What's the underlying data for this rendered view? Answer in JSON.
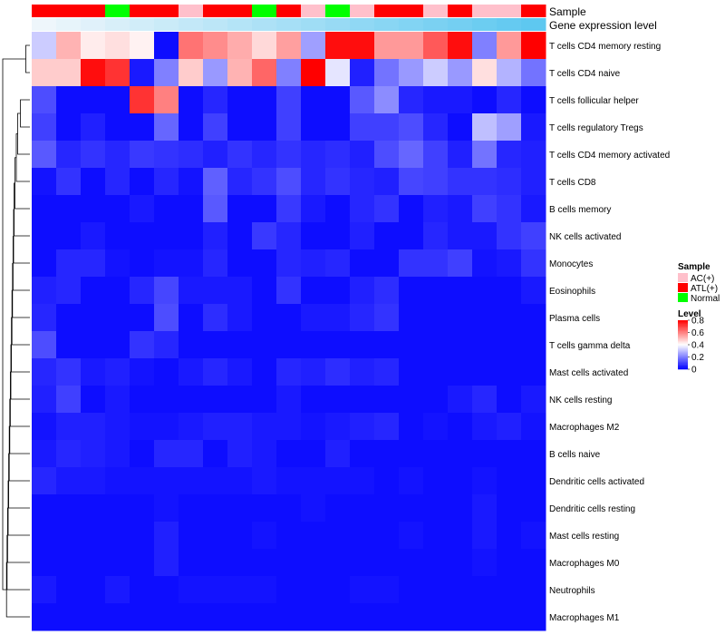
{
  "chart_data": {
    "type": "heatmap",
    "annotation_tracks": [
      {
        "key": "sample",
        "label": "Sample"
      },
      {
        "key": "level",
        "label": "Gene expression level"
      }
    ],
    "columns": [
      {
        "sample": "ATL(+)",
        "level": 0.05
      },
      {
        "sample": "ATL(+)",
        "level": 0.1
      },
      {
        "sample": "ATL(+)",
        "level": 0.15
      },
      {
        "sample": "Normal",
        "level": 0.2
      },
      {
        "sample": "ATL(+)",
        "level": 0.25
      },
      {
        "sample": "ATL(+)",
        "level": 0.3
      },
      {
        "sample": "AC(+)",
        "level": 0.35
      },
      {
        "sample": "ATL(+)",
        "level": 0.4
      },
      {
        "sample": "ATL(+)",
        "level": 0.45
      },
      {
        "sample": "Normal",
        "level": 0.5
      },
      {
        "sample": "ATL(+)",
        "level": 0.55
      },
      {
        "sample": "AC(+)",
        "level": 0.6
      },
      {
        "sample": "Normal",
        "level": 0.65
      },
      {
        "sample": "AC(+)",
        "level": 0.7
      },
      {
        "sample": "ATL(+)",
        "level": 0.75
      },
      {
        "sample": "ATL(+)",
        "level": 0.8
      },
      {
        "sample": "AC(+)",
        "level": 0.85
      },
      {
        "sample": "ATL(+)",
        "level": 0.9
      },
      {
        "sample": "AC(+)",
        "level": 0.95
      },
      {
        "sample": "AC(+)",
        "level": 1.0
      },
      {
        "sample": "ATL(+)",
        "level": 1.05
      }
    ],
    "rows": [
      "T cells CD4 memory resting",
      "T cells CD4 naive",
      "T cells follicular helper",
      "T cells regulatory  Tregs",
      "T cells CD4 memory activated",
      "T cells CD8",
      "B cells memory",
      "NK cells activated",
      "Monocytes",
      "Eosinophils",
      "Plasma cells",
      "T cells gamma delta",
      "Mast cells activated",
      "NK cells resting",
      "Macrophages M2",
      "B cells naive",
      "Dendritic cells activated",
      "Dendritic cells resting",
      "Mast cells resting",
      "Macrophages M0",
      "Neutrophils",
      "Macrophages M1"
    ],
    "values": [
      [
        0.32,
        0.52,
        0.43,
        0.45,
        0.42,
        0.02,
        0.62,
        0.58,
        0.53,
        0.46,
        0.55,
        0.25,
        0.78,
        0.78,
        0.56,
        0.56,
        0.66,
        0.78,
        0.2,
        0.56,
        0.8
      ],
      [
        0.48,
        0.48,
        0.78,
        0.72,
        0.04,
        0.2,
        0.48,
        0.24,
        0.52,
        0.64,
        0.2,
        0.8,
        0.36,
        0.05,
        0.18,
        0.24,
        0.32,
        0.24,
        0.45,
        0.28,
        0.18
      ],
      [
        0.12,
        0.02,
        0.02,
        0.02,
        0.72,
        0.6,
        0.02,
        0.06,
        0.02,
        0.02,
        0.1,
        0.02,
        0.02,
        0.14,
        0.22,
        0.06,
        0.04,
        0.04,
        0.02,
        0.06,
        0.02
      ],
      [
        0.1,
        0.02,
        0.05,
        0.02,
        0.02,
        0.16,
        0.02,
        0.1,
        0.02,
        0.02,
        0.1,
        0.02,
        0.02,
        0.1,
        0.1,
        0.12,
        0.06,
        0.02,
        0.3,
        0.25,
        0.04
      ],
      [
        0.14,
        0.06,
        0.08,
        0.06,
        0.09,
        0.08,
        0.07,
        0.05,
        0.08,
        0.06,
        0.08,
        0.06,
        0.07,
        0.05,
        0.12,
        0.16,
        0.1,
        0.05,
        0.18,
        0.06,
        0.05
      ],
      [
        0.03,
        0.08,
        0.02,
        0.06,
        0.02,
        0.06,
        0.03,
        0.15,
        0.06,
        0.08,
        0.12,
        0.06,
        0.08,
        0.06,
        0.05,
        0.11,
        0.1,
        0.08,
        0.08,
        0.07,
        0.05
      ],
      [
        0.02,
        0.02,
        0.02,
        0.02,
        0.04,
        0.02,
        0.02,
        0.14,
        0.02,
        0.02,
        0.09,
        0.04,
        0.02,
        0.06,
        0.08,
        0.02,
        0.05,
        0.04,
        0.1,
        0.08,
        0.04
      ],
      [
        0.02,
        0.02,
        0.04,
        0.02,
        0.02,
        0.02,
        0.02,
        0.05,
        0.02,
        0.09,
        0.06,
        0.02,
        0.02,
        0.05,
        0.02,
        0.02,
        0.06,
        0.04,
        0.04,
        0.08,
        0.1
      ],
      [
        0.02,
        0.06,
        0.06,
        0.03,
        0.02,
        0.03,
        0.03,
        0.06,
        0.02,
        0.02,
        0.06,
        0.05,
        0.06,
        0.02,
        0.02,
        0.08,
        0.08,
        0.1,
        0.03,
        0.04,
        0.08
      ],
      [
        0.05,
        0.06,
        0.02,
        0.02,
        0.06,
        0.11,
        0.04,
        0.04,
        0.04,
        0.02,
        0.08,
        0.02,
        0.02,
        0.05,
        0.07,
        0.02,
        0.02,
        0.02,
        0.02,
        0.02,
        0.04
      ],
      [
        0.06,
        0.02,
        0.02,
        0.02,
        0.02,
        0.12,
        0.02,
        0.07,
        0.04,
        0.02,
        0.02,
        0.04,
        0.04,
        0.06,
        0.08,
        0.02,
        0.02,
        0.02,
        0.02,
        0.02,
        0.02
      ],
      [
        0.12,
        0.02,
        0.02,
        0.02,
        0.08,
        0.06,
        0.02,
        0.02,
        0.02,
        0.02,
        0.02,
        0.02,
        0.02,
        0.02,
        0.02,
        0.02,
        0.02,
        0.02,
        0.02,
        0.02,
        0.02
      ],
      [
        0.06,
        0.08,
        0.04,
        0.05,
        0.03,
        0.02,
        0.04,
        0.06,
        0.04,
        0.02,
        0.06,
        0.05,
        0.07,
        0.05,
        0.06,
        0.02,
        0.02,
        0.02,
        0.02,
        0.02,
        0.02
      ],
      [
        0.05,
        0.1,
        0.02,
        0.04,
        0.02,
        0.02,
        0.02,
        0.02,
        0.02,
        0.02,
        0.04,
        0.02,
        0.02,
        0.02,
        0.02,
        0.02,
        0.02,
        0.04,
        0.06,
        0.02,
        0.04
      ],
      [
        0.03,
        0.05,
        0.05,
        0.04,
        0.03,
        0.03,
        0.04,
        0.05,
        0.05,
        0.04,
        0.04,
        0.03,
        0.04,
        0.05,
        0.06,
        0.02,
        0.03,
        0.02,
        0.04,
        0.05,
        0.03
      ],
      [
        0.04,
        0.06,
        0.05,
        0.04,
        0.02,
        0.06,
        0.06,
        0.02,
        0.05,
        0.04,
        0.02,
        0.02,
        0.05,
        0.02,
        0.02,
        0.02,
        0.02,
        0.02,
        0.02,
        0.02,
        0.02
      ],
      [
        0.06,
        0.04,
        0.04,
        0.03,
        0.03,
        0.03,
        0.03,
        0.03,
        0.03,
        0.04,
        0.03,
        0.03,
        0.03,
        0.03,
        0.02,
        0.03,
        0.02,
        0.02,
        0.03,
        0.02,
        0.02
      ],
      [
        0.02,
        0.02,
        0.02,
        0.02,
        0.02,
        0.03,
        0.02,
        0.02,
        0.02,
        0.02,
        0.02,
        0.03,
        0.02,
        0.02,
        0.02,
        0.02,
        0.02,
        0.02,
        0.04,
        0.02,
        0.02
      ],
      [
        0.02,
        0.02,
        0.02,
        0.02,
        0.02,
        0.05,
        0.02,
        0.02,
        0.02,
        0.03,
        0.02,
        0.02,
        0.02,
        0.02,
        0.02,
        0.03,
        0.02,
        0.02,
        0.04,
        0.02,
        0.03
      ],
      [
        0.02,
        0.02,
        0.02,
        0.02,
        0.02,
        0.05,
        0.02,
        0.02,
        0.02,
        0.02,
        0.02,
        0.02,
        0.02,
        0.02,
        0.02,
        0.02,
        0.02,
        0.02,
        0.03,
        0.02,
        0.02
      ],
      [
        0.04,
        0.02,
        0.02,
        0.04,
        0.02,
        0.02,
        0.03,
        0.03,
        0.03,
        0.03,
        0.02,
        0.02,
        0.02,
        0.03,
        0.03,
        0.02,
        0.02,
        0.02,
        0.02,
        0.02,
        0.02
      ],
      [
        0.02,
        0.02,
        0.02,
        0.02,
        0.02,
        0.02,
        0.02,
        0.02,
        0.02,
        0.02,
        0.02,
        0.02,
        0.02,
        0.02,
        0.02,
        0.02,
        0.02,
        0.02,
        0.02,
        0.02,
        0.02
      ]
    ],
    "color_scale": {
      "min": 0,
      "max": 0.8,
      "stops": [
        {
          "value": 0,
          "color": "#0000ff"
        },
        {
          "value": 0.4,
          "color": "#ffffff"
        },
        {
          "value": 0.8,
          "color": "#ff0000"
        }
      ]
    },
    "legend_sample": {
      "title": "Sample",
      "items": [
        {
          "label": "AC(+)",
          "color": "#ffc0cb"
        },
        {
          "label": "ATL(+)",
          "color": "#ff0000"
        },
        {
          "label": "Normal",
          "color": "#00ff00"
        }
      ]
    },
    "legend_level": {
      "title": "Level",
      "ticks": [
        0.8,
        0.6,
        0.4,
        0.2,
        0
      ]
    },
    "level_track_colors": [
      "#eef6fb",
      "#5ec8f0"
    ],
    "dendrogram": {
      "merges": [
        [
          0,
          1
        ],
        [
          2,
          3
        ],
        [
          -2,
          4
        ],
        [
          -3,
          5
        ],
        [
          -4,
          6
        ],
        [
          -5,
          7
        ],
        [
          -6,
          8
        ],
        [
          -7,
          9
        ],
        [
          -8,
          10
        ],
        [
          -9,
          11
        ],
        [
          -10,
          12
        ],
        [
          -11,
          13
        ],
        [
          -12,
          14
        ],
        [
          -13,
          15
        ],
        [
          -14,
          16
        ],
        [
          -15,
          17
        ],
        [
          -16,
          18
        ],
        [
          -17,
          19
        ],
        [
          -18,
          20
        ],
        [
          -19,
          21
        ],
        [
          -1,
          -20
        ]
      ],
      "heights": [
        0.15,
        0.35,
        0.45,
        0.5,
        0.55,
        0.58,
        0.6,
        0.62,
        0.64,
        0.66,
        0.68,
        0.7,
        0.72,
        0.74,
        0.76,
        0.78,
        0.8,
        0.82,
        0.84,
        0.86,
        1.0
      ]
    }
  }
}
